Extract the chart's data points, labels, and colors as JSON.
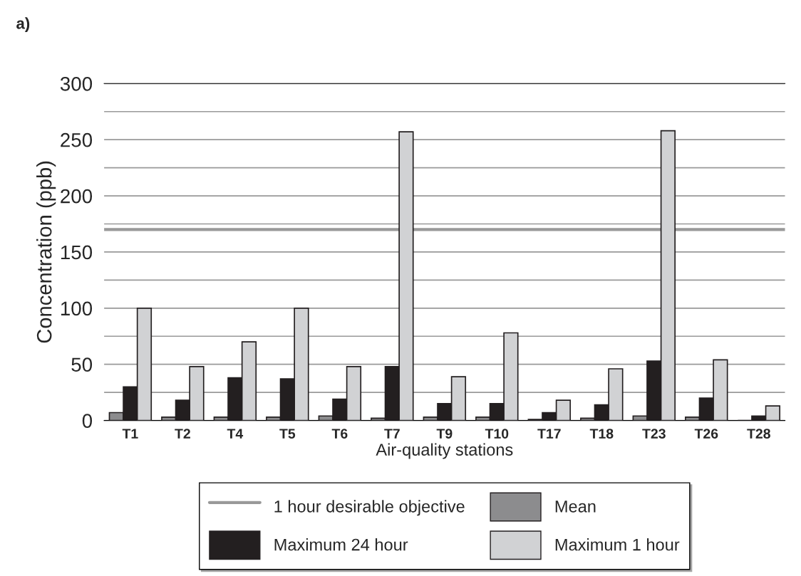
{
  "chart_data": {
    "type": "bar",
    "xlabel": "Air-quality stations",
    "ylabel": "Concentration (ppb)",
    "annotations": [
      "a)"
    ],
    "categories": [
      "T1",
      "T2",
      "T4",
      "T5",
      "T6",
      "T7",
      "T9",
      "T10",
      "T17",
      "T18",
      "T23",
      "T26",
      "T28"
    ],
    "series": [
      {
        "name": "Mean",
        "color": "#8c8c8e",
        "values": [
          7,
          3,
          3,
          3,
          4,
          2,
          3,
          3,
          1,
          2,
          4,
          3,
          null
        ]
      },
      {
        "name": "Maximum 24 hour",
        "color": "#231f20",
        "values": [
          30,
          18,
          38,
          37,
          19,
          48,
          15,
          15,
          7,
          14,
          53,
          20,
          4
        ]
      },
      {
        "name": "Maximum 1 hour",
        "color": "#d1d2d4",
        "values": [
          100,
          48,
          70,
          100,
          48,
          257,
          39,
          78,
          18,
          46,
          258,
          54,
          13
        ]
      }
    ],
    "ref_lines": [
      {
        "axis": "y",
        "value": 170,
        "label": "1 hour desirable objective",
        "color": "#999999",
        "line_style": "solid"
      }
    ],
    "ylim": [
      0,
      300
    ],
    "yticks": [
      0,
      {
        "value": 25,
        "label": null
      },
      50,
      {
        "value": 75,
        "label": null
      },
      100,
      {
        "value": 125,
        "label": null
      },
      150,
      {
        "value": 175,
        "label": null
      },
      200,
      {
        "value": 225,
        "label": null
      },
      250,
      {
        "value": 275,
        "label": null
      },
      300
    ],
    "grid": "y",
    "legend": "bottom"
  }
}
